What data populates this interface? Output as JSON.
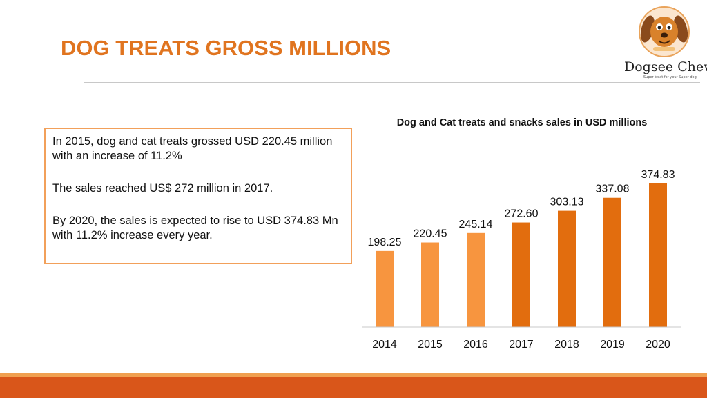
{
  "slide": {
    "title": "DOG TREATS GROSS MILLIONS",
    "logo": {
      "brand": "Dogsee Chew",
      "tagline": "Super treat for your Super dog"
    },
    "paragraphs": [
      "In 2015, dog and cat treats grossed USD 220.45 million with an increase of 11.2%",
      "The sales reached US$ 272 million in 2017.",
      "By 2020, the sales is expected to rise to USD 374.83 Mn with 11.2% increase every year."
    ]
  },
  "colors": {
    "title": "#e0741f",
    "bar_light": "#f7953f",
    "bar_dark": "#e26d0e",
    "bottom_bar": "#d9561a"
  },
  "chart_data": {
    "type": "bar",
    "title": "Dog and Cat treats and snacks sales in USD millions",
    "categories": [
      "2014",
      "2015",
      "2016",
      "2017",
      "2018",
      "2019",
      "2020"
    ],
    "values": [
      198.25,
      220.45,
      245.14,
      272.6,
      303.13,
      337.08,
      374.83
    ],
    "value_labels": [
      "198.25",
      "220.45",
      "245.14",
      "272.60",
      "303.13",
      "337.08",
      "374.83"
    ],
    "ylim": [
      0,
      450
    ],
    "grid": false,
    "legend": "none",
    "bar_color_groups": [
      "light",
      "light",
      "light",
      "dark",
      "dark",
      "dark",
      "dark"
    ]
  }
}
